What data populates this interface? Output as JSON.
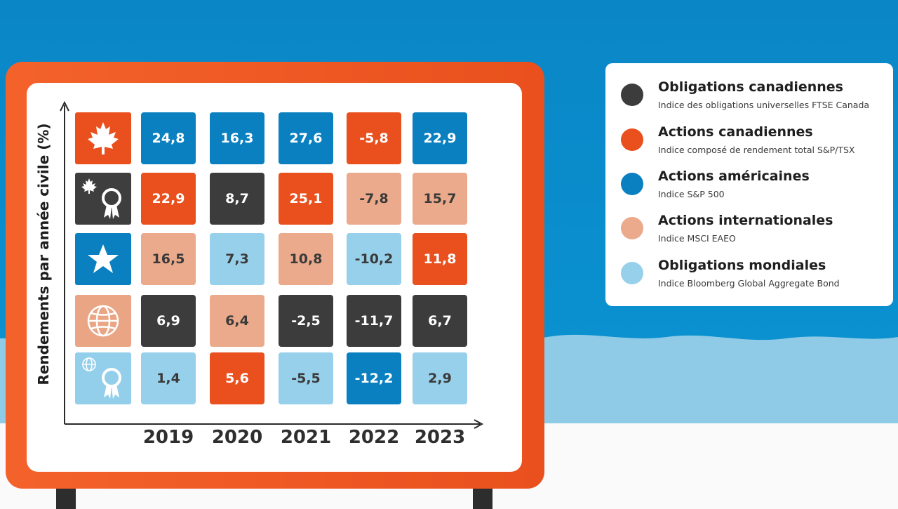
{
  "chart_data": {
    "type": "table",
    "ylabel": "Rendements par année civile (%)",
    "categories": [
      "2019",
      "2020",
      "2021",
      "2022",
      "2023"
    ],
    "rows": [
      {
        "icon": "maple-leaf-icon",
        "icon_color": "#e9501d",
        "cells": [
          {
            "value": "24,8",
            "class": "Actions américaines"
          },
          {
            "value": "16,3",
            "class": "Actions américaines"
          },
          {
            "value": "27,6",
            "class": "Actions américaines"
          },
          {
            "value": "-5,8",
            "class": "Actions canadiennes"
          },
          {
            "value": "22,9",
            "class": "Actions américaines"
          }
        ]
      },
      {
        "icon": "maple-leaf-ribbon-icon",
        "icon_color": "#3e3e3e",
        "cells": [
          {
            "value": "22,9",
            "class": "Actions canadiennes"
          },
          {
            "value": "8,7",
            "class": "Obligations canadiennes"
          },
          {
            "value": "25,1",
            "class": "Actions canadiennes"
          },
          {
            "value": "-7,8",
            "class": "Actions internationales"
          },
          {
            "value": "15,7",
            "class": "Actions internationales"
          }
        ]
      },
      {
        "icon": "star-icon",
        "icon_color": "#0a80c0",
        "cells": [
          {
            "value": "16,5",
            "class": "Actions internationales"
          },
          {
            "value": "7,3",
            "class": "Obligations mondiales"
          },
          {
            "value": "10,8",
            "class": "Actions internationales"
          },
          {
            "value": "-10,2",
            "class": "Obligations mondiales"
          },
          {
            "value": "11,8",
            "class": "Actions canadiennes"
          }
        ]
      },
      {
        "icon": "globe-icon",
        "icon_color": "#e9a584",
        "cells": [
          {
            "value": "6,9",
            "class": "Obligations canadiennes"
          },
          {
            "value": "6,4",
            "class": "Actions internationales"
          },
          {
            "value": "-2,5",
            "class": "Obligations canadiennes"
          },
          {
            "value": "-11,7",
            "class": "Obligations canadiennes"
          },
          {
            "value": "6,7",
            "class": "Obligations canadiennes"
          }
        ]
      },
      {
        "icon": "globe-ribbon-icon",
        "icon_color": "#93cfea",
        "cells": [
          {
            "value": "1,4",
            "class": "Obligations mondiales"
          },
          {
            "value": "5,6",
            "class": "Actions canadiennes"
          },
          {
            "value": "-5,5",
            "class": "Obligations mondiales"
          },
          {
            "value": "-12,2",
            "class": "Actions américaines"
          },
          {
            "value": "2,9",
            "class": "Obligations mondiales"
          }
        ]
      }
    ],
    "legend": [
      {
        "name": "Obligations canadiennes",
        "sub": "Indice des obligations universelles FTSE Canada",
        "color": "#3c3c3c"
      },
      {
        "name": "Actions canadiennes",
        "sub": "Indice composé de rendement total S&P/TSX",
        "color": "#e9501d"
      },
      {
        "name": "Actions américaines",
        "sub": "Indice S&P 500",
        "color": "#0a80c0"
      },
      {
        "name": "Actions internationales",
        "sub": "Indice MSCI EAEO",
        "color": "#eaaa8b"
      },
      {
        "name": "Obligations mondiales",
        "sub": "Indice Bloomberg Global Aggregate Bond",
        "color": "#97d0ea"
      }
    ]
  }
}
